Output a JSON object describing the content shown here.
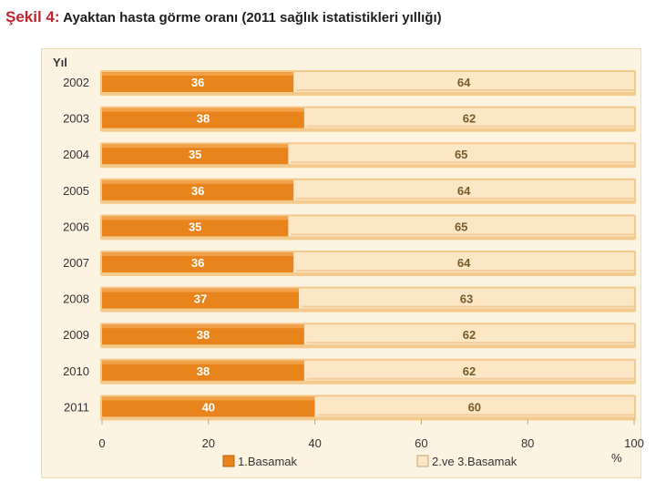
{
  "title": {
    "figure": "Şekil 4:",
    "caption": "Ayaktan hasta görme oranı (2011 sağlık istatistikleri yıllığı)"
  },
  "chart_data": {
    "type": "bar",
    "orientation": "horizontal",
    "stacked": true,
    "categories": [
      "2002",
      "2003",
      "2004",
      "2005",
      "2006",
      "2007",
      "2008",
      "2009",
      "2010",
      "2011"
    ],
    "series": [
      {
        "name": "1.Basamak",
        "color": "#e8841b",
        "values": [
          36,
          38,
          35,
          36,
          35,
          36,
          37,
          38,
          38,
          40
        ]
      },
      {
        "name": "2.ve 3.Basamak",
        "color": "#fbe6c6",
        "values": [
          64,
          62,
          65,
          64,
          65,
          64,
          63,
          62,
          62,
          60
        ]
      }
    ],
    "ylabel": "Yıl",
    "xlabel": "%",
    "xlim": [
      0,
      100
    ],
    "xticks": [
      0,
      20,
      40,
      60,
      80,
      100
    ],
    "legend": "bottom"
  }
}
